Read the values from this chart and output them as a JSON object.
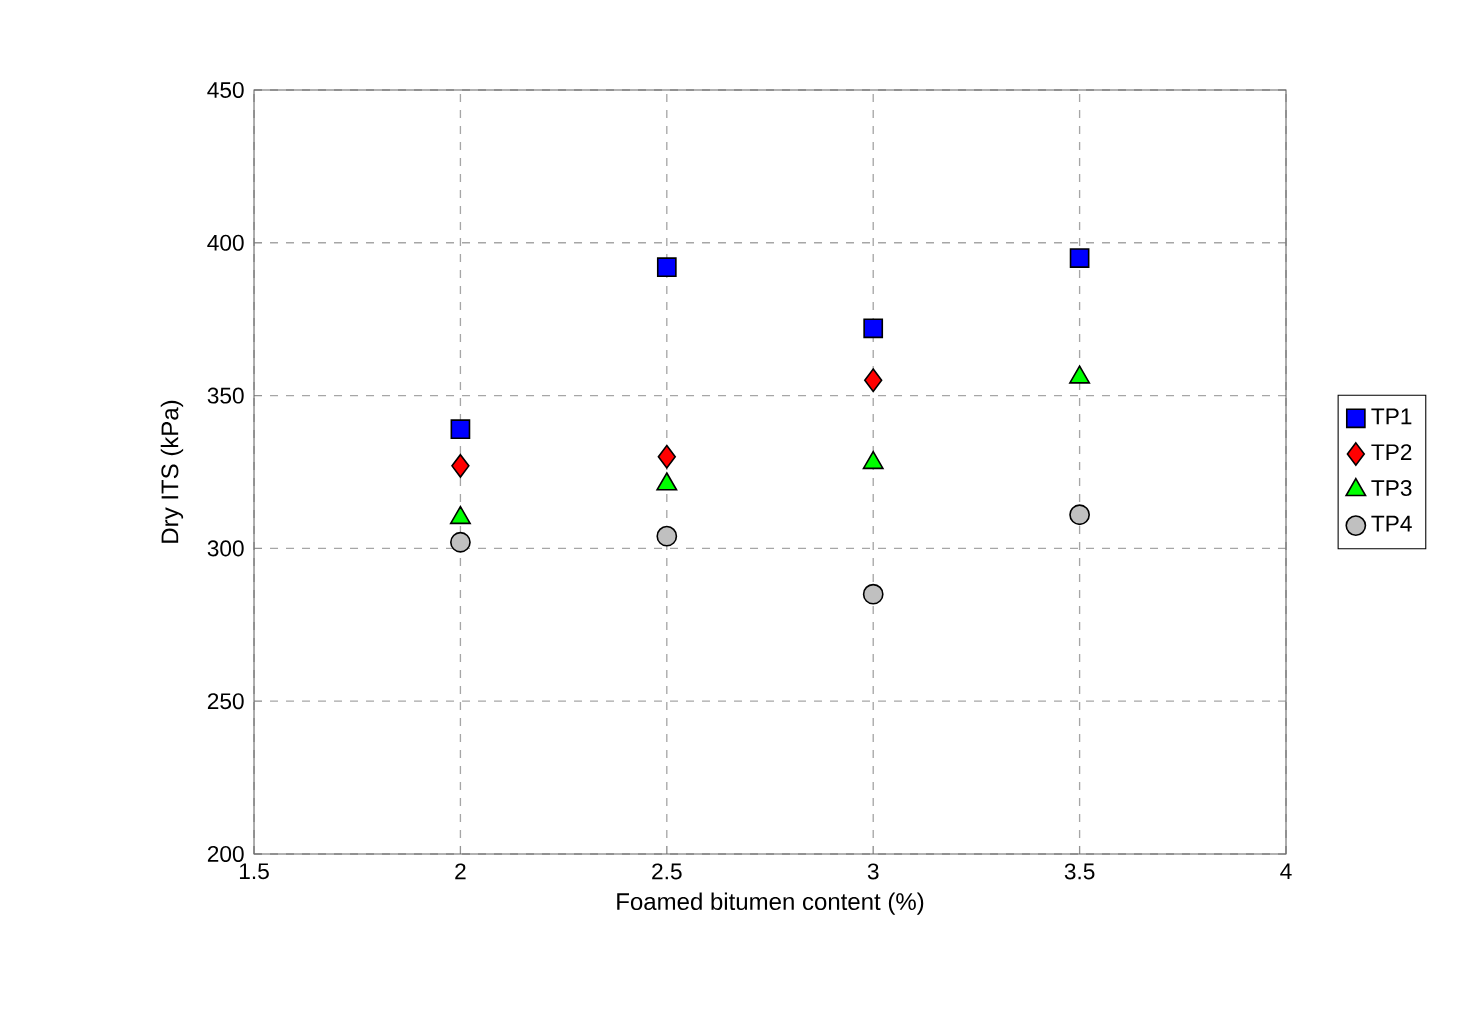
{
  "chart_data": {
    "type": "scatter",
    "xlabel": "Foamed bitumen content (%)",
    "ylabel": "Dry ITS (kPa)",
    "x": [
      2,
      2.5,
      3,
      3.5
    ],
    "series": [
      {
        "name": "TP1",
        "color": "#0000ff",
        "marker": "square",
        "values": [
          339,
          392,
          372,
          395
        ]
      },
      {
        "name": "TP2",
        "color": "#ff0000",
        "marker": "diamond",
        "values": [
          327,
          330,
          355,
          null
        ]
      },
      {
        "name": "TP3",
        "color": "#00ff00",
        "marker": "triangle",
        "values": [
          310,
          321,
          328,
          356
        ]
      },
      {
        "name": "TP4",
        "color": "#c0c0c0",
        "marker": "circle",
        "values": [
          302,
          304,
          285,
          311
        ]
      }
    ],
    "xlim": [
      1.5,
      4
    ],
    "ylim": [
      200,
      450
    ],
    "xticks": [
      1.5,
      2,
      2.5,
      3,
      3.5,
      4
    ],
    "yticks": [
      200,
      250,
      300,
      350,
      400,
      450
    ],
    "grid": true,
    "legend": "right"
  }
}
